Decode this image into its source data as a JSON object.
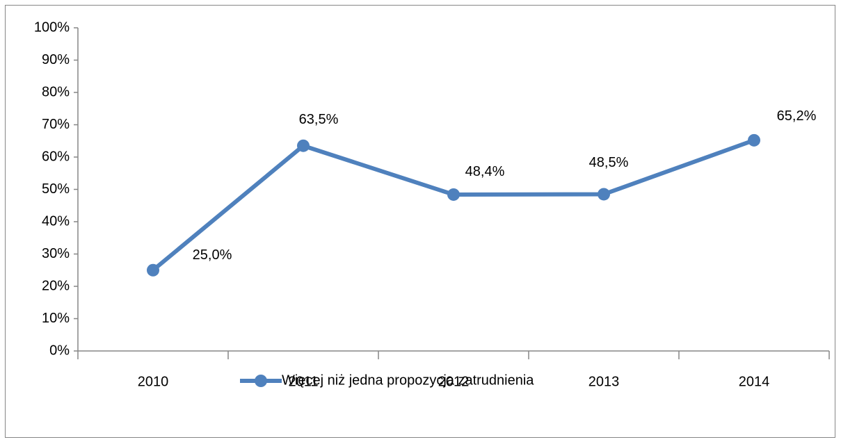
{
  "chart_data": {
    "type": "line",
    "categories": [
      "2010",
      "2011",
      "2012",
      "2013",
      "2014"
    ],
    "series": [
      {
        "name": "Więcej niż jedna propozycja zatrudnienia",
        "color": "#4f81bd",
        "values": [
          25.0,
          63.5,
          48.4,
          48.5,
          65.2
        ],
        "value_labels": [
          "25,0%",
          "63,5%",
          "48,4%",
          "48,5%",
          "65,2%"
        ]
      }
    ],
    "ylim": [
      0,
      100
    ],
    "yticks": [
      {
        "value": 0,
        "label": "0%"
      },
      {
        "value": 10,
        "label": "10%"
      },
      {
        "value": 20,
        "label": "20%"
      },
      {
        "value": 30,
        "label": "30%"
      },
      {
        "value": 40,
        "label": "40%"
      },
      {
        "value": 50,
        "label": "50%"
      },
      {
        "value": 60,
        "label": "60%"
      },
      {
        "value": 70,
        "label": "70%"
      },
      {
        "value": 80,
        "label": "80%"
      },
      {
        "value": 90,
        "label": "90%"
      },
      {
        "value": 100,
        "label": "100%"
      }
    ],
    "grid": false,
    "legend": "bottom"
  }
}
